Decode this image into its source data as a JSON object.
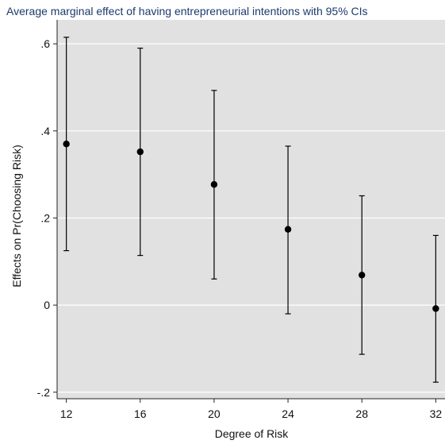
{
  "chart_data": {
    "type": "scatter",
    "title": "Average marginal effect of having entrepreneurial intentions with 95% CIs",
    "xlabel": "Degree of Risk",
    "ylabel": "Effects on Pr(Choosing Risk)",
    "x": [
      12,
      16,
      20,
      24,
      28,
      32
    ],
    "x_ticks": [
      "12",
      "16",
      "20",
      "24",
      "28",
      "32"
    ],
    "y_ticks": [
      {
        "value": -0.2,
        "label": "-.2"
      },
      {
        "value": 0,
        "label": "0"
      },
      {
        "value": 0.2,
        "label": ".2"
      },
      {
        "value": 0.4,
        "label": ".4"
      },
      {
        "value": 0.6,
        "label": ".6"
      }
    ],
    "series": [
      {
        "estimate": [
          0.37,
          0.352,
          0.277,
          0.174,
          0.069,
          -0.008
        ],
        "ci_lower": [
          0.125,
          0.114,
          0.06,
          -0.02,
          -0.113,
          -0.177
        ],
        "ci_upper": [
          0.615,
          0.59,
          0.493,
          0.365,
          0.251,
          0.16
        ]
      }
    ],
    "xlim": [
      11.5,
      32.5
    ],
    "ylim": [
      -0.215,
      0.655
    ],
    "grid": true,
    "legend": "none",
    "colors": {
      "plot_background": "#e1e1e1",
      "grid": "#ffffff",
      "marker": "#000000",
      "title": "#1b3a6b"
    }
  }
}
